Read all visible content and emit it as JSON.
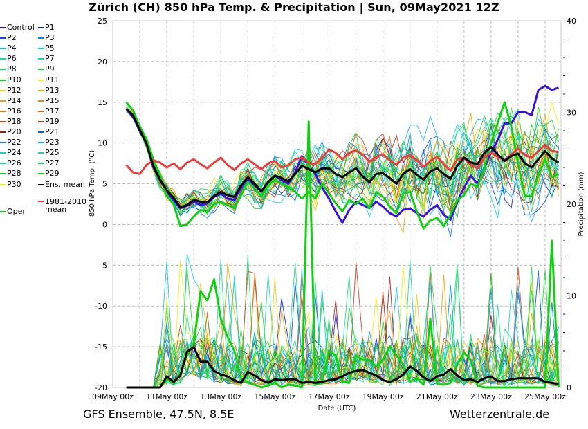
{
  "title": "Zürich  (CH)  850 hPa Temp. & Precipitation | Sun, 09May2021 12Z",
  "footer": {
    "source_model": "GFS Ensemble, 47.5N, 8.5E",
    "website": "Wetterzentrale.de"
  },
  "legend": {
    "items": [
      {
        "label": "Control",
        "color": "#2a00d5"
      },
      {
        "label": "P1",
        "color": "#0020e0"
      },
      {
        "label": "P2",
        "color": "#0050e8"
      },
      {
        "label": "P3",
        "color": "#0088f0"
      },
      {
        "label": "P4",
        "color": "#10b8e8"
      },
      {
        "label": "P5",
        "color": "#00d8d8"
      },
      {
        "label": "P6",
        "color": "#10d8a0"
      },
      {
        "label": "P7",
        "color": "#10e080"
      },
      {
        "label": "P8",
        "color": "#10d860"
      },
      {
        "label": "P9",
        "color": "#10d830"
      },
      {
        "label": "P10",
        "color": "#10d810"
      },
      {
        "label": "P11",
        "color": "#f0f000"
      },
      {
        "label": "P12",
        "color": "#f0d000"
      },
      {
        "label": "P13",
        "color": "#f0b000"
      },
      {
        "label": "P14",
        "color": "#f0a000"
      },
      {
        "label": "P15",
        "color": "#f08800"
      },
      {
        "label": "P16",
        "color": "#e07810"
      },
      {
        "label": "P17",
        "color": "#d86010"
      },
      {
        "label": "P18",
        "color": "#d04810"
      },
      {
        "label": "P19",
        "color": "#c83820"
      },
      {
        "label": "P20",
        "color": "#a01818"
      },
      {
        "label": "P21",
        "color": "#0060e0"
      },
      {
        "label": "P22",
        "color": "#1080f0"
      },
      {
        "label": "P23",
        "color": "#10b0f0"
      },
      {
        "label": "P24",
        "color": "#10d0e0"
      },
      {
        "label": "P25",
        "color": "#10d8a0"
      },
      {
        "label": "P26",
        "color": "#10e080"
      },
      {
        "label": "P27",
        "color": "#10e050"
      },
      {
        "label": "P28",
        "color": "#10d830"
      },
      {
        "label": "P29",
        "color": "#10d010"
      },
      {
        "label": "P30",
        "color": "#f0f000"
      },
      {
        "label": "Ens. mean",
        "color": "#000000"
      },
      {
        "label": "Oper",
        "color": "#10d010"
      },
      {
        "label": "1981-2010\nmean",
        "color": "#f03030"
      }
    ]
  },
  "chart_data": {
    "type": "line",
    "title": "Zürich  (CH)  850 hPa Temp. & Precipitation | Sun, 09May2021 12Z",
    "xlabel": "Date (UTC)",
    "ylabel": "850 hPa Temp. (°C)",
    "y2label": "Precipitation (mm)",
    "x_unit": "days since 09May 00z",
    "xlim": [
      0,
      16.6
    ],
    "ylim": [
      -20,
      25
    ],
    "y2lim": [
      0,
      40
    ],
    "x_tick_labels": [
      "09May 00z",
      "11May 00z",
      "13May 00z",
      "15May 00z",
      "17May 00z",
      "19May 00z",
      "21May 00z",
      "23May 00z",
      "25May 00z"
    ],
    "x_tick_values": [
      0,
      2,
      4,
      6,
      8,
      10,
      12,
      14,
      16
    ],
    "y_ticks": [
      -20,
      -15,
      -10,
      -5,
      0,
      5,
      10,
      15,
      20,
      25
    ],
    "y2_ticks": [
      0,
      10,
      20,
      30,
      40
    ],
    "grid": true,
    "legend_position": "left-outside",
    "x": [
      0.5,
      0.75,
      1.0,
      1.25,
      1.5,
      1.75,
      2.0,
      2.25,
      2.5,
      2.75,
      3.0,
      3.25,
      3.5,
      3.75,
      4.0,
      4.25,
      4.5,
      4.75,
      5.0,
      5.25,
      5.5,
      5.75,
      6.0,
      6.25,
      6.5,
      6.75,
      7.0,
      7.25,
      7.5,
      7.75,
      8.0,
      8.25,
      8.5,
      8.75,
      9.0,
      9.25,
      9.5,
      9.75,
      10.0,
      10.25,
      10.5,
      10.75,
      11.0,
      11.25,
      11.5,
      11.75,
      12.0,
      12.25,
      12.5,
      12.75,
      13.0,
      13.25,
      13.5,
      13.75,
      14.0,
      14.25,
      14.5,
      14.75,
      15.0,
      15.25,
      15.5,
      15.75,
      16.0,
      16.25,
      16.5
    ],
    "series": [
      {
        "name": "Ens. mean",
        "axis": "temp",
        "color": "#000000",
        "width": 3,
        "values": [
          14.2,
          13.4,
          11.6,
          9.9,
          7.2,
          5.5,
          4.2,
          3.3,
          2.1,
          2.4,
          3.0,
          2.8,
          2.7,
          3.5,
          4.0,
          3.6,
          3.4,
          4.8,
          5.8,
          5.0,
          4.1,
          5.2,
          6.0,
          5.7,
          5.3,
          6.2,
          7.2,
          6.8,
          6.4,
          6.9,
          6.9,
          6.2,
          5.8,
          6.4,
          6.9,
          5.9,
          5.2,
          6.2,
          6.3,
          5.7,
          5.0,
          6.2,
          6.8,
          6.1,
          5.5,
          6.5,
          6.9,
          6.2,
          5.6,
          7.2,
          8.2,
          7.6,
          7.4,
          8.8,
          9.5,
          8.6,
          7.8,
          8.4,
          8.7,
          7.5,
          7.0,
          8.0,
          9.0,
          8.1,
          7.6
        ]
      },
      {
        "name": "1981-2010 mean",
        "axis": "temp",
        "color": "#f03c3c",
        "width": 3,
        "values": [
          7.3,
          6.4,
          6.2,
          7.3,
          7.9,
          7.6,
          7.0,
          7.5,
          6.8,
          7.6,
          8.0,
          7.4,
          6.9,
          7.6,
          8.2,
          7.3,
          6.7,
          7.5,
          8.0,
          7.4,
          6.8,
          7.5,
          7.8,
          7.0,
          7.3,
          8.0,
          8.2,
          7.6,
          7.4,
          8.2,
          9.2,
          8.8,
          8.0,
          8.8,
          9.1,
          8.6,
          7.7,
          8.3,
          8.6,
          7.9,
          7.3,
          8.2,
          8.5,
          7.9,
          7.1,
          7.8,
          8.3,
          7.4,
          6.6,
          8.0,
          8.2,
          7.3,
          6.9,
          8.2,
          8.8,
          8.3,
          7.9,
          8.6,
          9.3,
          8.5,
          8.2,
          9.0,
          9.8,
          9.0,
          8.9
        ]
      },
      {
        "name": "Oper",
        "axis": "temp",
        "color": "#10d010",
        "width": 3,
        "values": [
          15.0,
          14.0,
          12.0,
          10.5,
          8.0,
          6.0,
          3.5,
          2.5,
          -0.2,
          0.0,
          1.0,
          1.8,
          1.5,
          2.5,
          2.8,
          2.4,
          2.0,
          3.6,
          5.2,
          4.4,
          3.5,
          4.8,
          5.5,
          5.0,
          4.6,
          4.0,
          3.2,
          4.0,
          3.2,
          5.0,
          3.8,
          2.6,
          1.6,
          3.0,
          2.5,
          3.2,
          2.0,
          4.0,
          3.4,
          2.2,
          1.4,
          3.8,
          4.0,
          1.6,
          -0.5,
          0.5,
          0.8,
          -0.2,
          1.2,
          3.0,
          3.6,
          5.0,
          4.6,
          7.0,
          10.0,
          12.5,
          15.0,
          12.0,
          7.5,
          3.5,
          3.5,
          6.0,
          8.0,
          5.8,
          6.2
        ]
      },
      {
        "name": "Control",
        "axis": "temp",
        "color": "#3a10e0",
        "width": 3,
        "values": [
          14.2,
          13.2,
          11.5,
          10.0,
          7.0,
          5.5,
          4.0,
          3.0,
          2.0,
          2.3,
          2.8,
          2.4,
          2.6,
          3.4,
          3.8,
          3.2,
          3.0,
          4.6,
          5.6,
          4.8,
          4.0,
          5.2,
          6.0,
          5.4,
          5.0,
          6.4,
          8.4,
          7.2,
          6.2,
          4.5,
          3.2,
          1.6,
          0.2,
          1.8,
          2.8,
          2.4,
          2.0,
          2.8,
          2.2,
          1.4,
          1.0,
          1.8,
          2.0,
          1.4,
          1.0,
          1.8,
          2.4,
          1.2,
          0.6,
          2.8,
          4.5,
          6.0,
          5.0,
          7.0,
          8.8,
          10.4,
          12.4,
          12.4,
          13.8,
          13.8,
          13.4,
          16.5,
          17.0,
          16.5,
          16.8
        ]
      },
      {
        "name": "Ens. mean precip",
        "axis": "precip",
        "color": "#000000",
        "width": 3,
        "values": [
          0,
          0,
          0,
          0,
          0,
          0,
          1.2,
          0.6,
          1.3,
          3.9,
          4.4,
          2.8,
          2.8,
          1.8,
          1.4,
          1.2,
          0.8,
          0.5,
          1.7,
          1.3,
          0.8,
          0.5,
          0.9,
          0.8,
          0.9,
          0.9,
          0.5,
          0.6,
          0.5,
          0.6,
          0.8,
          0.9,
          1.2,
          1.6,
          1.8,
          1.9,
          1.6,
          1.3,
          0.8,
          0.6,
          0.9,
          1.4,
          2.3,
          1.8,
          1.1,
          0.7,
          1.2,
          1.4,
          2.0,
          1.3,
          0.8,
          0.9,
          0.6,
          1.0,
          1.2,
          0.7,
          0.7,
          0.9,
          1.0,
          1.0,
          1.0,
          1.0,
          0.6,
          0.5,
          0.4
        ]
      },
      {
        "name": "Oper precip",
        "axis": "precip",
        "color": "#10d010",
        "width": 3,
        "values": [
          0,
          0,
          0,
          0,
          0,
          0,
          1.0,
          0.5,
          1.5,
          3.5,
          4.8,
          10.5,
          9.5,
          11.8,
          7.5,
          5.5,
          4.0,
          1.0,
          0.5,
          0.3,
          0.0,
          0.2,
          0.5,
          0.0,
          0.3,
          0.2,
          0.0,
          29.0,
          0.3,
          0.5,
          4.0,
          3.5,
          0.6,
          0.5,
          3.5,
          3.0,
          3.0,
          2.3,
          3.0,
          4.5,
          3.5,
          2.5,
          0.6,
          1.0,
          0.3,
          7.5,
          0.4,
          0.3,
          0.5,
          2.5,
          3.8,
          3.0,
          0.2,
          0.0,
          0.0,
          0.0,
          0.0,
          0.0,
          0.0,
          0.0,
          0.0,
          0.0,
          0.0,
          16.0,
          0.0
        ]
      }
    ]
  }
}
